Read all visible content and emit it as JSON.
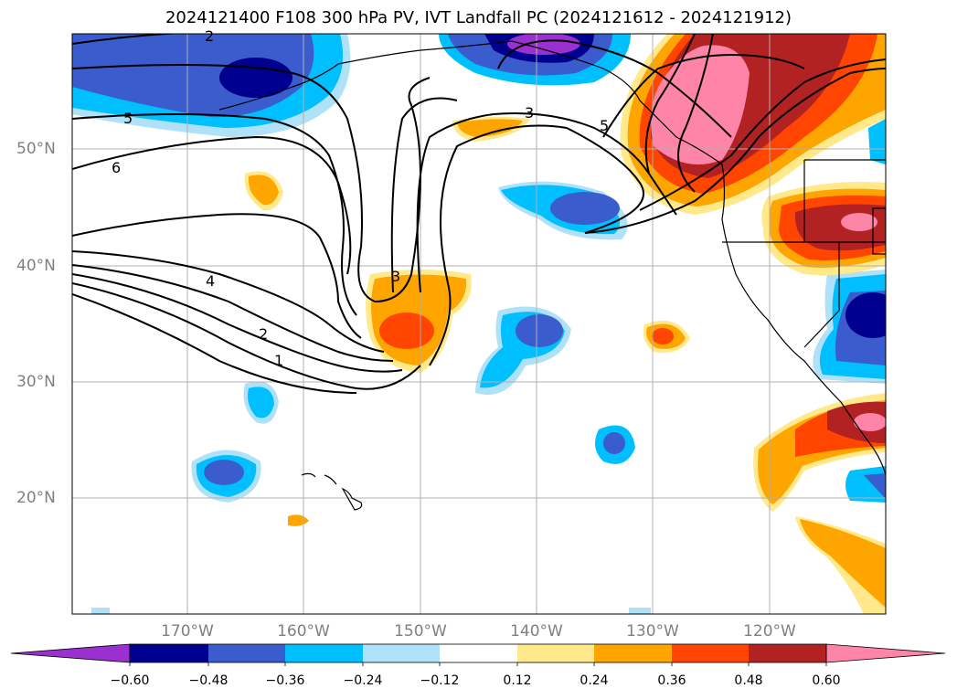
{
  "title": "2024121400 F108 300 hPa PV, IVT Landfall PC (2024121612 - 2024121912)",
  "map": {
    "lat_labels": [
      "50°N",
      "40°N",
      "30°N",
      "20°N"
    ],
    "lon_labels": [
      "170°W",
      "160°W",
      "150°W",
      "140°W",
      "130°W",
      "120°W"
    ],
    "contour_labels": [
      "2",
      "5",
      "6",
      "4",
      "2",
      "1",
      "3",
      "3",
      "5"
    ],
    "colors": {
      "outline": "#000000",
      "grid": "#b0b0b0"
    }
  },
  "colorbar": {
    "ticks": [
      "−0.60",
      "−0.48",
      "−0.36",
      "−0.24",
      "−0.12",
      "0.12",
      "0.24",
      "0.36",
      "0.48",
      "0.60"
    ],
    "colors": [
      "#9b30d0",
      "#000090",
      "#3a5ccc",
      "#00bfff",
      "#afe1f8",
      "#ffffff",
      "#ffe98a",
      "#ffa500",
      "#ff4500",
      "#b22222",
      "#ff85a8"
    ]
  }
}
